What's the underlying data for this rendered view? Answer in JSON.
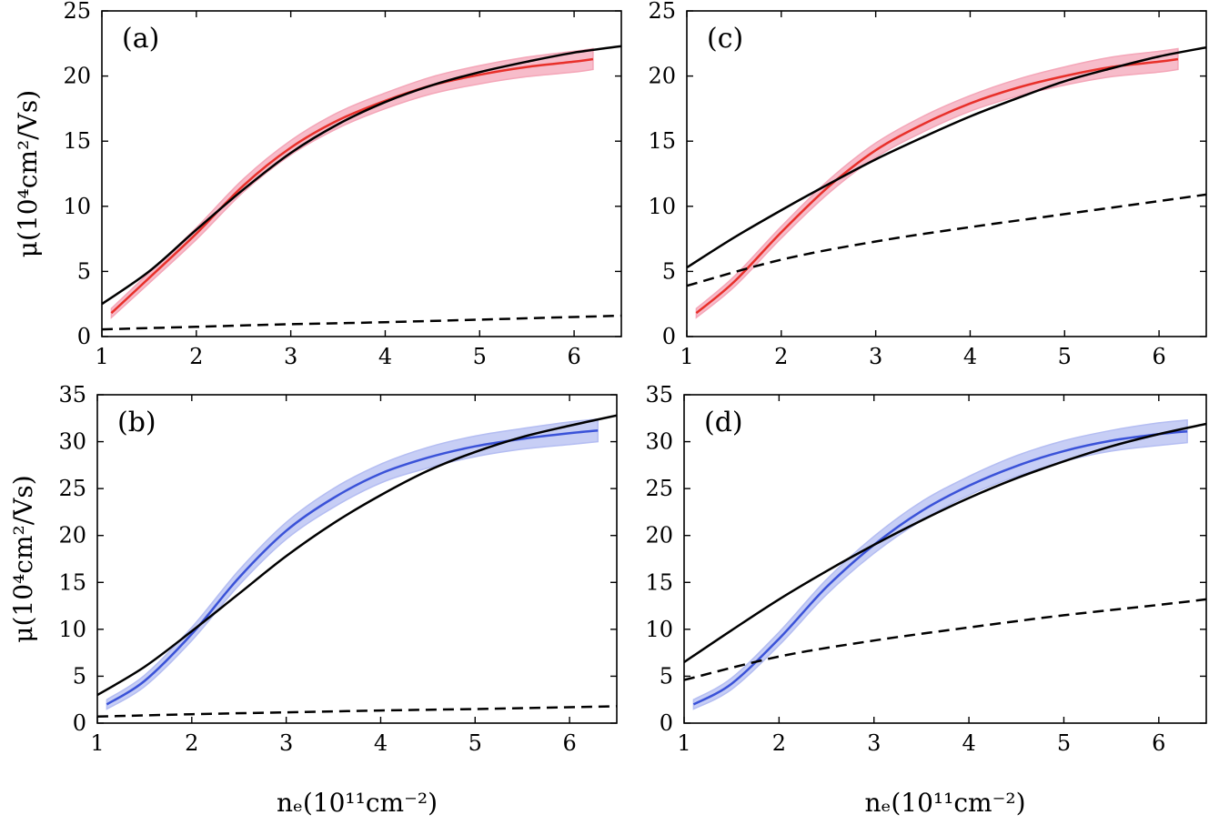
{
  "chart_data": [
    {
      "type": "line",
      "panel_label": "(a)",
      "xlim": [
        1,
        6.5
      ],
      "ylim": [
        0,
        25
      ],
      "xticks": [
        "1",
        "2",
        "3",
        "4",
        "5",
        "6"
      ],
      "yticks": [
        "0",
        "5",
        "10",
        "15",
        "20",
        "25"
      ],
      "ylabel": "μ(10⁴cm²/Vs)",
      "xlabel": "",
      "series": [
        {
          "style": "measured-with-band",
          "color": "#e8302a",
          "band_color": "#f4a6b8",
          "x": [
            1.1,
            1.5,
            2.0,
            2.5,
            3.0,
            3.5,
            4.0,
            4.5,
            5.0,
            5.5,
            6.0,
            6.2
          ],
          "y": [
            1.8,
            4.5,
            7.9,
            11.6,
            14.5,
            16.6,
            18.1,
            19.3,
            20.1,
            20.7,
            21.1,
            21.3
          ],
          "err": [
            0.35,
            0.4,
            0.45,
            0.5,
            0.55,
            0.6,
            0.6,
            0.65,
            0.7,
            0.75,
            0.8,
            0.8
          ]
        },
        {
          "style": "solid",
          "color": "#000000",
          "x": [
            1.0,
            1.5,
            2.0,
            2.5,
            3.0,
            3.5,
            4.0,
            4.5,
            5.0,
            5.5,
            6.0,
            6.5
          ],
          "y": [
            2.5,
            5.0,
            8.2,
            11.3,
            14.1,
            16.3,
            18.0,
            19.3,
            20.3,
            21.1,
            21.8,
            22.3
          ]
        },
        {
          "style": "dashed",
          "color": "#000000",
          "x": [
            1.0,
            2.0,
            3.0,
            4.0,
            5.0,
            6.0,
            6.5
          ],
          "y": [
            0.55,
            0.75,
            0.95,
            1.1,
            1.3,
            1.5,
            1.6
          ]
        }
      ]
    },
    {
      "type": "line",
      "panel_label": "(c)",
      "xlim": [
        1,
        6.5
      ],
      "ylim": [
        0,
        25
      ],
      "xticks": [
        "1",
        "2",
        "3",
        "4",
        "5",
        "6"
      ],
      "yticks": [
        "0",
        "5",
        "10",
        "15",
        "20",
        "25"
      ],
      "ylabel": "",
      "xlabel": "",
      "series": [
        {
          "style": "measured-with-band",
          "color": "#e8302a",
          "band_color": "#f4a6b8",
          "x": [
            1.1,
            1.5,
            2.0,
            2.5,
            3.0,
            3.5,
            4.0,
            4.5,
            5.0,
            5.5,
            6.0,
            6.2
          ],
          "y": [
            1.8,
            4.2,
            8.0,
            11.5,
            14.3,
            16.3,
            17.9,
            19.1,
            20.0,
            20.7,
            21.1,
            21.3
          ],
          "err": [
            0.35,
            0.4,
            0.45,
            0.5,
            0.55,
            0.6,
            0.6,
            0.65,
            0.7,
            0.75,
            0.8,
            0.8
          ]
        },
        {
          "style": "solid",
          "color": "#000000",
          "x": [
            1.0,
            1.5,
            2.0,
            2.5,
            3.0,
            3.5,
            4.0,
            4.5,
            5.0,
            5.5,
            6.0,
            6.5
          ],
          "y": [
            5.3,
            7.6,
            9.7,
            11.7,
            13.6,
            15.3,
            16.9,
            18.3,
            19.6,
            20.6,
            21.5,
            22.2
          ]
        },
        {
          "style": "dashed",
          "color": "#000000",
          "x": [
            1.0,
            2.0,
            3.0,
            4.0,
            5.0,
            6.0,
            6.5
          ],
          "y": [
            3.9,
            5.9,
            7.3,
            8.4,
            9.4,
            10.4,
            10.9
          ]
        }
      ]
    },
    {
      "type": "line",
      "panel_label": "(b)",
      "xlim": [
        1,
        6.5
      ],
      "ylim": [
        0,
        35
      ],
      "xticks": [
        "1",
        "2",
        "3",
        "4",
        "5",
        "6"
      ],
      "yticks": [
        "0",
        "5",
        "10",
        "15",
        "20",
        "25",
        "30",
        "35"
      ],
      "ylabel": "μ(10⁴cm²/Vs)",
      "xlabel": "nₑ(10¹¹cm⁻²)",
      "series": [
        {
          "style": "measured-with-band",
          "color": "#3a52d8",
          "band_color": "#b4bdf2",
          "x": [
            1.1,
            1.5,
            2.0,
            2.5,
            3.0,
            3.5,
            4.0,
            4.5,
            5.0,
            5.5,
            6.0,
            6.3
          ],
          "y": [
            2.0,
            4.5,
            9.5,
            15.5,
            20.5,
            24.0,
            26.6,
            28.3,
            29.5,
            30.3,
            30.9,
            31.2
          ],
          "err": [
            0.5,
            0.6,
            0.7,
            0.8,
            0.9,
            1.0,
            1.0,
            1.1,
            1.1,
            1.1,
            1.2,
            1.2
          ]
        },
        {
          "style": "solid",
          "color": "#000000",
          "x": [
            1.0,
            1.5,
            2.0,
            2.5,
            3.0,
            3.5,
            4.0,
            4.5,
            5.0,
            5.5,
            6.0,
            6.5
          ],
          "y": [
            3.0,
            6.0,
            9.8,
            13.8,
            17.8,
            21.3,
            24.3,
            26.9,
            28.9,
            30.5,
            31.7,
            32.8
          ]
        },
        {
          "style": "dashed",
          "color": "#000000",
          "x": [
            1.0,
            2.0,
            3.0,
            4.0,
            5.0,
            6.0,
            6.5
          ],
          "y": [
            0.7,
            0.95,
            1.15,
            1.35,
            1.5,
            1.7,
            1.8
          ]
        }
      ]
    },
    {
      "type": "line",
      "panel_label": "(d)",
      "xlim": [
        1,
        6.5
      ],
      "ylim": [
        0,
        35
      ],
      "xticks": [
        "1",
        "2",
        "3",
        "4",
        "5",
        "6"
      ],
      "yticks": [
        "0",
        "5",
        "10",
        "15",
        "20",
        "25",
        "30",
        "35"
      ],
      "ylabel": "",
      "xlabel": "nₑ(10¹¹cm⁻²)",
      "series": [
        {
          "style": "measured-with-band",
          "color": "#3a52d8",
          "band_color": "#b4bdf2",
          "x": [
            1.1,
            1.5,
            2.0,
            2.5,
            3.0,
            3.5,
            4.0,
            4.5,
            5.0,
            5.5,
            6.0,
            6.3
          ],
          "y": [
            2.0,
            4.2,
            9.0,
            14.5,
            19.0,
            22.6,
            25.3,
            27.4,
            29.0,
            30.1,
            30.8,
            31.1
          ],
          "err": [
            0.5,
            0.6,
            0.7,
            0.8,
            0.9,
            1.0,
            1.0,
            1.1,
            1.1,
            1.1,
            1.2,
            1.2
          ]
        },
        {
          "style": "solid",
          "color": "#000000",
          "x": [
            1.0,
            1.5,
            2.0,
            2.5,
            3.0,
            3.5,
            4.0,
            4.5,
            5.0,
            5.5,
            6.0,
            6.5
          ],
          "y": [
            6.5,
            9.9,
            13.2,
            16.2,
            19.0,
            21.6,
            24.0,
            26.1,
            27.9,
            29.5,
            30.8,
            31.9
          ]
        },
        {
          "style": "dashed",
          "color": "#000000",
          "x": [
            1.0,
            2.0,
            3.0,
            4.0,
            5.0,
            6.0,
            6.5
          ],
          "y": [
            4.6,
            7.1,
            8.8,
            10.2,
            11.5,
            12.6,
            13.2
          ]
        }
      ]
    }
  ]
}
